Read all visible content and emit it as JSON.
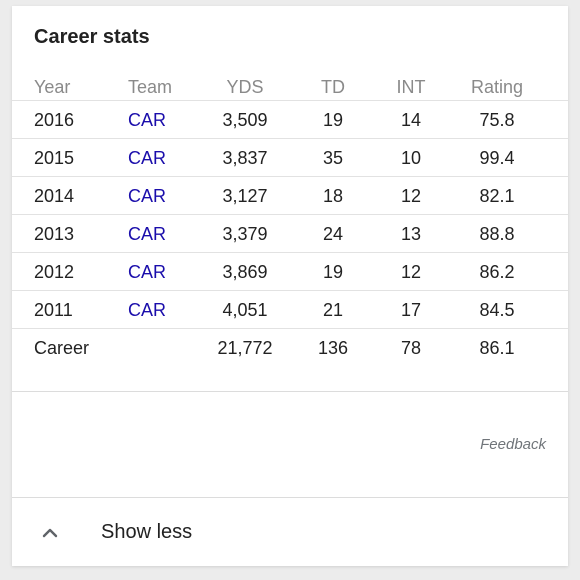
{
  "card": {
    "title": "Career stats",
    "feedback_label": "Feedback",
    "show_less_label": "Show less"
  },
  "table": {
    "columns": [
      "Year",
      "Team",
      "YDS",
      "TD",
      "INT",
      "Rating"
    ],
    "rows": [
      {
        "year": "2016",
        "team": "CAR",
        "yds": "3,509",
        "td": "19",
        "int": "14",
        "rating": "75.8"
      },
      {
        "year": "2015",
        "team": "CAR",
        "yds": "3,837",
        "td": "35",
        "int": "10",
        "rating": "99.4"
      },
      {
        "year": "2014",
        "team": "CAR",
        "yds": "3,127",
        "td": "18",
        "int": "12",
        "rating": "82.1"
      },
      {
        "year": "2013",
        "team": "CAR",
        "yds": "3,379",
        "td": "24",
        "int": "13",
        "rating": "88.8"
      },
      {
        "year": "2012",
        "team": "CAR",
        "yds": "3,869",
        "td": "19",
        "int": "12",
        "rating": "86.2"
      },
      {
        "year": "2011",
        "team": "CAR",
        "yds": "4,051",
        "td": "21",
        "int": "17",
        "rating": "84.5"
      }
    ],
    "career": {
      "label": "Career",
      "team": "",
      "yds": "21,772",
      "td": "136",
      "int": "78",
      "rating": "86.1"
    }
  },
  "icons": {
    "collapse": "chevron-up-icon"
  },
  "colors": {
    "team_link": "#1a0dab",
    "header_text": "#8a8a8a",
    "feedback_text": "#70757a"
  }
}
